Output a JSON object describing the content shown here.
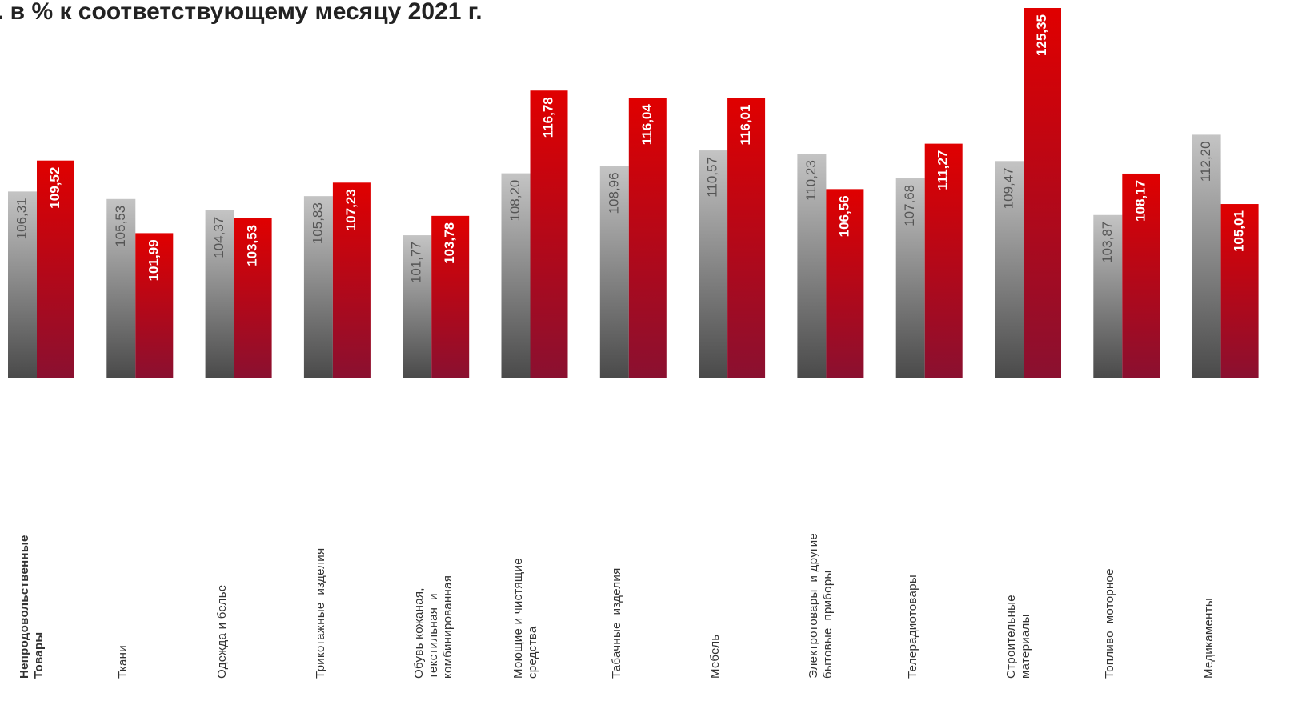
{
  "chart_data": {
    "type": "bar",
    "title": ". в %  к соответствующему месяцу 2021 г.",
    "categories": [
      "Непродовольственные\nТовары",
      "Ткани",
      "Одежда и белье",
      "Трикотажные  изделия",
      "Обувь кожаная,\nтекстильная  и\nкомбинированная",
      "Моющие и чистящие\nсредства",
      "Табачные  изделия",
      "Мебель",
      "Электротовары  и другие\nбытовые  приборы",
      "Телерадиотовары",
      "Строительные\nматериалы",
      "Топливо  моторное",
      "Медикаменты"
    ],
    "series": [
      {
        "color": "#c4c4c4",
        "values": [
          106.31,
          105.53,
          104.37,
          105.83,
          101.77,
          108.2,
          108.96,
          110.57,
          110.23,
          107.68,
          109.47,
          103.87,
          112.2
        ],
        "value_labels": [
          "106,31",
          "105,53",
          "104,37",
          "105,83",
          "101,77",
          "108,20",
          "108,96",
          "110,57",
          "110,23",
          "107,68",
          "109,47",
          "103,87",
          "112,20"
        ]
      },
      {
        "color": "#e00000",
        "values": [
          109.52,
          101.99,
          103.53,
          107.23,
          103.78,
          116.78,
          116.04,
          116.01,
          106.56,
          111.27,
          125.35,
          108.17,
          105.01
        ],
        "value_labels": [
          "109,52",
          "101,99",
          "103,53",
          "107,23",
          "103,78",
          "116,78",
          "116,04",
          "116,01",
          "106,56",
          "111,27",
          "125,35",
          "108,17",
          "105,01"
        ]
      }
    ],
    "ylim": [
      87,
      125.35
    ]
  }
}
